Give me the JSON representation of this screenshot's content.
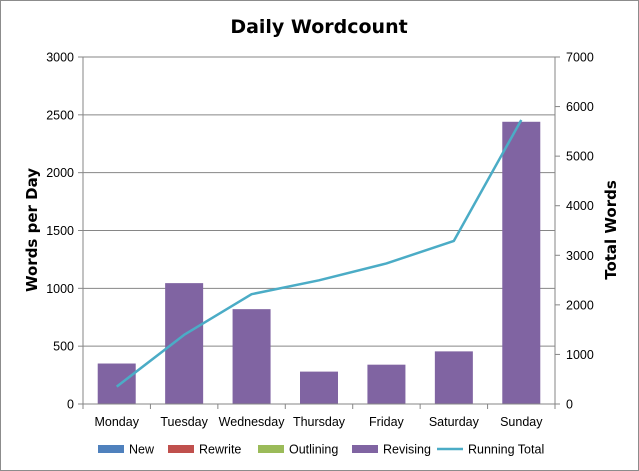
{
  "chart_data": {
    "type": "bar",
    "title": "Daily Wordcount",
    "categories": [
      "Monday",
      "Tuesday",
      "Wednesday",
      "Thursday",
      "Friday",
      "Saturday",
      "Sunday"
    ],
    "y_left": {
      "label": "Words per Day",
      "range": [
        0,
        3000
      ],
      "ticks": [
        0,
        500,
        1000,
        1500,
        2000,
        2500,
        3000
      ]
    },
    "y_right": {
      "label": "Total Words",
      "range": [
        0,
        7000
      ],
      "ticks": [
        0,
        1000,
        2000,
        3000,
        4000,
        5000,
        6000,
        7000
      ]
    },
    "series": [
      {
        "name": "New",
        "type": "bar",
        "axis": "left",
        "color": "#4f81bd",
        "values": [
          0,
          0,
          0,
          0,
          0,
          0,
          0
        ]
      },
      {
        "name": "Rewrite",
        "type": "bar",
        "axis": "left",
        "color": "#c0504d",
        "values": [
          0,
          0,
          0,
          0,
          0,
          0,
          0
        ]
      },
      {
        "name": "Outlining",
        "type": "bar",
        "axis": "left",
        "color": "#9bbb59",
        "values": [
          0,
          0,
          0,
          0,
          0,
          0,
          0
        ]
      },
      {
        "name": "Revising",
        "type": "bar",
        "axis": "left",
        "color": "#8064a2",
        "values": [
          350,
          1045,
          820,
          280,
          340,
          455,
          2440
        ]
      },
      {
        "name": "Running Total",
        "type": "line",
        "axis": "right",
        "color": "#4bacc6",
        "values": [
          350,
          1395,
          2215,
          2495,
          2835,
          3290,
          5730
        ]
      }
    ],
    "grid": "horizontal",
    "legend_position": "bottom"
  }
}
